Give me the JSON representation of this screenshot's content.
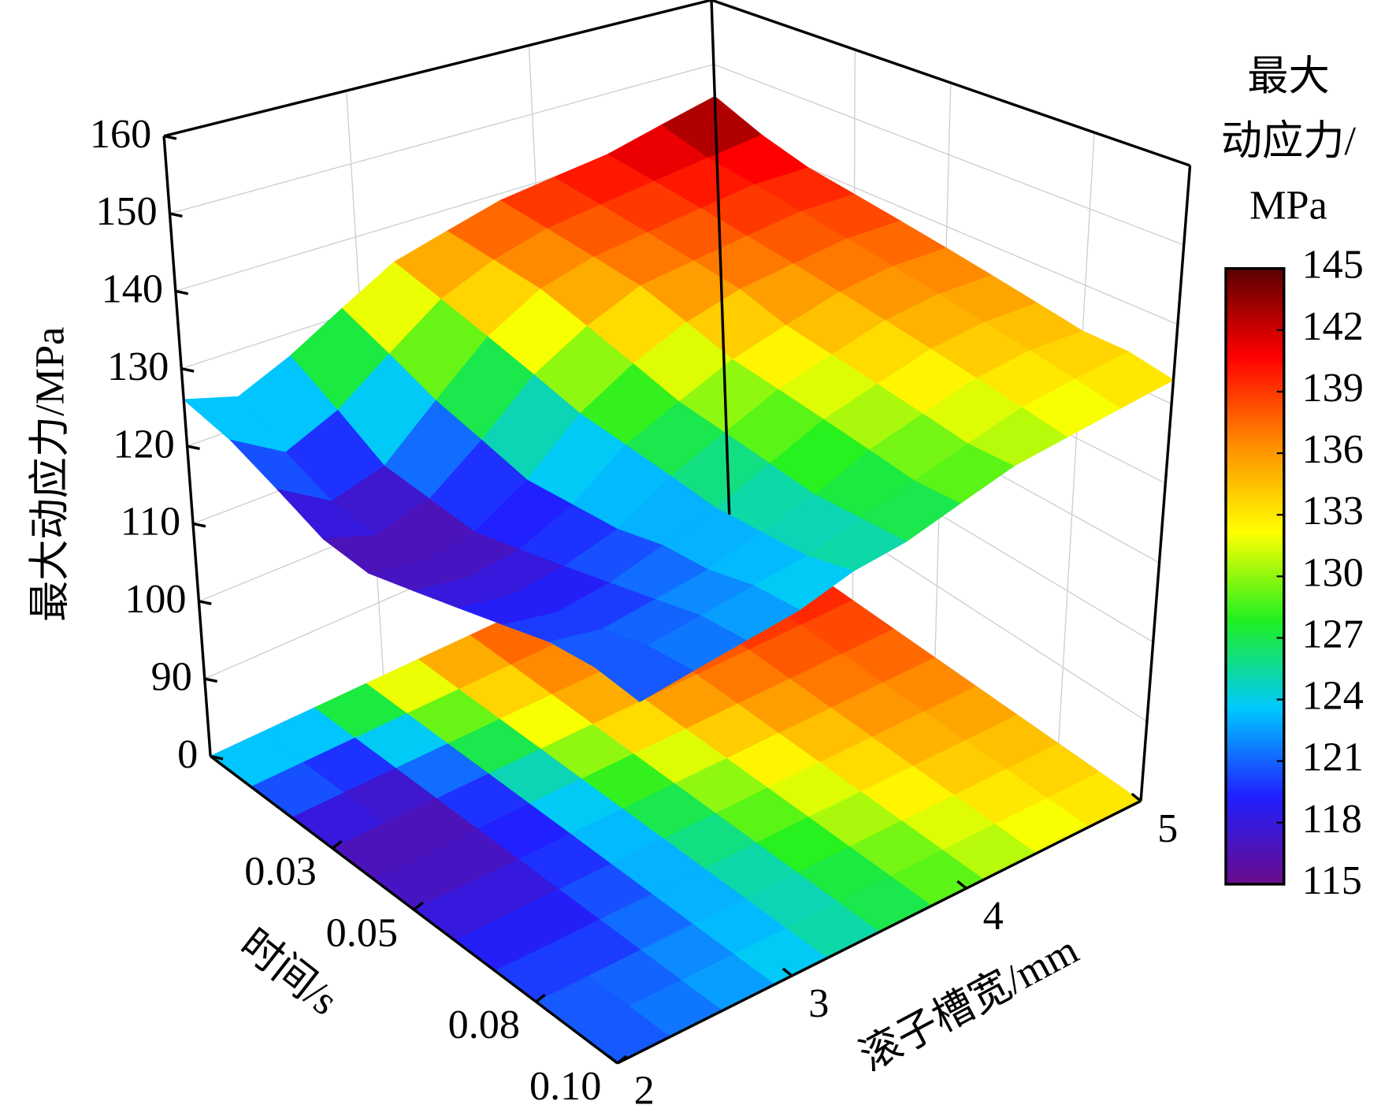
{
  "chart_data": {
    "type": "surface",
    "xlabel": "时间/s",
    "ylabel": "滚子槽宽/mm",
    "zlabel": "最大动应力/MPa",
    "x": [
      0,
      0.01,
      0.02,
      0.03,
      0.04,
      0.05,
      0.06,
      0.07,
      0.08,
      0.09,
      0.1
    ],
    "y": [
      2,
      2.3,
      2.6,
      2.9,
      3.2,
      3.5,
      3.8,
      4.1,
      4.4,
      4.7,
      5
    ],
    "z": [
      [
        126,
        124,
        127,
        131,
        135,
        137,
        139,
        140,
        141,
        143,
        145
      ],
      [
        124,
        120,
        123,
        128,
        133,
        136,
        138,
        139,
        140,
        141,
        142
      ],
      [
        121,
        117,
        119,
        125,
        131,
        135,
        137,
        138,
        139,
        140,
        140
      ],
      [
        118,
        116,
        118,
        123,
        129,
        133,
        136,
        137,
        138,
        139,
        139
      ],
      [
        117,
        116,
        117,
        121,
        127,
        131,
        134,
        136,
        137,
        138,
        138
      ],
      [
        118,
        117,
        118,
        121,
        126,
        129,
        132,
        134,
        136,
        137,
        137
      ],
      [
        119,
        118,
        119,
        121,
        125,
        128,
        131,
        133,
        135,
        136,
        136
      ],
      [
        120,
        119,
        120,
        122,
        124,
        127,
        130,
        132,
        134,
        135,
        135
      ],
      [
        121,
        120,
        121,
        122,
        124,
        126,
        129,
        131,
        133,
        134,
        134
      ],
      [
        121,
        121,
        122,
        123,
        124,
        126,
        128,
        130,
        132,
        133,
        134
      ],
      [
        120,
        121,
        122,
        123,
        125,
        126,
        128,
        130,
        131,
        132,
        133
      ]
    ],
    "xlim": [
      0,
      0.1
    ],
    "xticks": [
      0.03,
      0.05,
      0.08,
      {
        "value": 0.1,
        "label": "0.10"
      }
    ],
    "ylim": [
      2,
      5
    ],
    "yticks": [
      2,
      3,
      4,
      5
    ],
    "zticks": [
      0,
      90,
      100,
      110,
      120,
      130,
      140,
      150,
      160
    ],
    "grid": true,
    "colorbar": {
      "title": [
        "最大",
        "动应力/",
        "MPa"
      ],
      "lim": [
        115,
        145
      ],
      "ticks": [
        115,
        118,
        121,
        124,
        127,
        130,
        133,
        136,
        139,
        142,
        145
      ],
      "colors": [
        "#6a0a8a",
        "#2020ff",
        "#00c8ff",
        "#20f020",
        "#ffff00",
        "#ff8c00",
        "#ff0000",
        "#5a0000"
      ]
    }
  }
}
